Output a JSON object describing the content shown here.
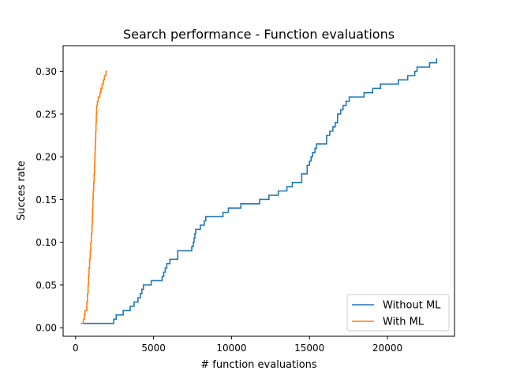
{
  "chart_data": {
    "type": "line",
    "title": "Search performance - Function evaluations",
    "xlabel": "# function evaluations",
    "ylabel": "Succes rate",
    "xlim": [
      -800,
      24300
    ],
    "ylim": [
      -0.01,
      0.33
    ],
    "x_ticks": [
      0,
      5000,
      10000,
      15000,
      20000
    ],
    "x_tick_labels": [
      "0",
      "5000",
      "10000",
      "15000",
      "20000"
    ],
    "y_ticks": [
      0.0,
      0.05,
      0.1,
      0.15,
      0.2,
      0.25,
      0.3
    ],
    "y_tick_labels": [
      "0.00",
      "0.05",
      "0.10",
      "0.15",
      "0.20",
      "0.25",
      "0.30"
    ],
    "grid": false,
    "legend_position": "bottom-right",
    "series": [
      {
        "name": "Without ML",
        "color": "#1f77b4",
        "step": true,
        "points": [
          [
            400,
            0.005
          ],
          [
            2450,
            0.005
          ],
          [
            2450,
            0.01
          ],
          [
            2600,
            0.01
          ],
          [
            2600,
            0.015
          ],
          [
            3050,
            0.015
          ],
          [
            3050,
            0.02
          ],
          [
            3500,
            0.02
          ],
          [
            3500,
            0.025
          ],
          [
            3750,
            0.025
          ],
          [
            3750,
            0.03
          ],
          [
            4000,
            0.03
          ],
          [
            4000,
            0.035
          ],
          [
            4150,
            0.035
          ],
          [
            4150,
            0.04
          ],
          [
            4250,
            0.04
          ],
          [
            4250,
            0.045
          ],
          [
            4350,
            0.045
          ],
          [
            4350,
            0.05
          ],
          [
            4850,
            0.05
          ],
          [
            4850,
            0.055
          ],
          [
            5550,
            0.055
          ],
          [
            5550,
            0.06
          ],
          [
            5650,
            0.06
          ],
          [
            5650,
            0.065
          ],
          [
            5750,
            0.065
          ],
          [
            5750,
            0.07
          ],
          [
            5850,
            0.07
          ],
          [
            5850,
            0.075
          ],
          [
            6050,
            0.075
          ],
          [
            6050,
            0.08
          ],
          [
            6550,
            0.08
          ],
          [
            6550,
            0.09
          ],
          [
            7450,
            0.09
          ],
          [
            7450,
            0.095
          ],
          [
            7550,
            0.095
          ],
          [
            7550,
            0.1
          ],
          [
            7600,
            0.1
          ],
          [
            7600,
            0.105
          ],
          [
            7650,
            0.105
          ],
          [
            7650,
            0.11
          ],
          [
            7700,
            0.11
          ],
          [
            7700,
            0.115
          ],
          [
            8000,
            0.115
          ],
          [
            8000,
            0.12
          ],
          [
            8250,
            0.12
          ],
          [
            8250,
            0.125
          ],
          [
            8350,
            0.125
          ],
          [
            8350,
            0.13
          ],
          [
            9450,
            0.13
          ],
          [
            9450,
            0.135
          ],
          [
            9800,
            0.135
          ],
          [
            9800,
            0.14
          ],
          [
            10600,
            0.14
          ],
          [
            10600,
            0.145
          ],
          [
            11800,
            0.145
          ],
          [
            11800,
            0.15
          ],
          [
            12400,
            0.15
          ],
          [
            12400,
            0.155
          ],
          [
            13000,
            0.155
          ],
          [
            13000,
            0.16
          ],
          [
            13550,
            0.16
          ],
          [
            13550,
            0.165
          ],
          [
            13900,
            0.165
          ],
          [
            13900,
            0.17
          ],
          [
            14500,
            0.17
          ],
          [
            14500,
            0.18
          ],
          [
            14850,
            0.18
          ],
          [
            14850,
            0.19
          ],
          [
            15000,
            0.19
          ],
          [
            15000,
            0.195
          ],
          [
            15100,
            0.195
          ],
          [
            15100,
            0.2
          ],
          [
            15200,
            0.2
          ],
          [
            15200,
            0.205
          ],
          [
            15350,
            0.205
          ],
          [
            15350,
            0.21
          ],
          [
            15450,
            0.21
          ],
          [
            15450,
            0.215
          ],
          [
            16100,
            0.215
          ],
          [
            16100,
            0.225
          ],
          [
            16300,
            0.225
          ],
          [
            16300,
            0.23
          ],
          [
            16500,
            0.23
          ],
          [
            16500,
            0.235
          ],
          [
            16650,
            0.235
          ],
          [
            16650,
            0.24
          ],
          [
            16800,
            0.24
          ],
          [
            16800,
            0.25
          ],
          [
            17000,
            0.25
          ],
          [
            17000,
            0.255
          ],
          [
            17150,
            0.255
          ],
          [
            17150,
            0.26
          ],
          [
            17350,
            0.26
          ],
          [
            17350,
            0.265
          ],
          [
            17550,
            0.265
          ],
          [
            17550,
            0.27
          ],
          [
            18500,
            0.27
          ],
          [
            18500,
            0.275
          ],
          [
            19050,
            0.275
          ],
          [
            19050,
            0.28
          ],
          [
            19550,
            0.28
          ],
          [
            19550,
            0.285
          ],
          [
            20700,
            0.285
          ],
          [
            20700,
            0.29
          ],
          [
            21300,
            0.29
          ],
          [
            21300,
            0.295
          ],
          [
            21750,
            0.295
          ],
          [
            21750,
            0.3
          ],
          [
            21900,
            0.3
          ],
          [
            21900,
            0.305
          ],
          [
            22700,
            0.305
          ],
          [
            22700,
            0.31
          ],
          [
            23150,
            0.31
          ],
          [
            23150,
            0.315
          ]
        ]
      },
      {
        "name": "With ML",
        "color": "#ff7f0e",
        "step": true,
        "points": [
          [
            350,
            0.005
          ],
          [
            500,
            0.005
          ],
          [
            500,
            0.01
          ],
          [
            560,
            0.01
          ],
          [
            560,
            0.015
          ],
          [
            600,
            0.015
          ],
          [
            600,
            0.02
          ],
          [
            720,
            0.02
          ],
          [
            720,
            0.03
          ],
          [
            760,
            0.03
          ],
          [
            760,
            0.04
          ],
          [
            800,
            0.04
          ],
          [
            800,
            0.05
          ],
          [
            830,
            0.05
          ],
          [
            830,
            0.06
          ],
          [
            860,
            0.06
          ],
          [
            860,
            0.07
          ],
          [
            900,
            0.07
          ],
          [
            900,
            0.08
          ],
          [
            940,
            0.08
          ],
          [
            940,
            0.09
          ],
          [
            970,
            0.09
          ],
          [
            970,
            0.1
          ],
          [
            1010,
            0.1
          ],
          [
            1010,
            0.11
          ],
          [
            1050,
            0.11
          ],
          [
            1050,
            0.12
          ],
          [
            1070,
            0.12
          ],
          [
            1070,
            0.13
          ],
          [
            1090,
            0.13
          ],
          [
            1090,
            0.14
          ],
          [
            1110,
            0.14
          ],
          [
            1110,
            0.15
          ],
          [
            1130,
            0.15
          ],
          [
            1130,
            0.16
          ],
          [
            1160,
            0.16
          ],
          [
            1160,
            0.17
          ],
          [
            1190,
            0.17
          ],
          [
            1190,
            0.18
          ],
          [
            1210,
            0.18
          ],
          [
            1210,
            0.19
          ],
          [
            1230,
            0.19
          ],
          [
            1230,
            0.2
          ],
          [
            1250,
            0.2
          ],
          [
            1250,
            0.21
          ],
          [
            1270,
            0.21
          ],
          [
            1270,
            0.22
          ],
          [
            1290,
            0.22
          ],
          [
            1290,
            0.23
          ],
          [
            1310,
            0.23
          ],
          [
            1310,
            0.24
          ],
          [
            1330,
            0.24
          ],
          [
            1330,
            0.25
          ],
          [
            1350,
            0.25
          ],
          [
            1350,
            0.26
          ],
          [
            1400,
            0.26
          ],
          [
            1400,
            0.265
          ],
          [
            1450,
            0.265
          ],
          [
            1450,
            0.27
          ],
          [
            1560,
            0.27
          ],
          [
            1560,
            0.275
          ],
          [
            1620,
            0.275
          ],
          [
            1620,
            0.28
          ],
          [
            1700,
            0.28
          ],
          [
            1700,
            0.285
          ],
          [
            1780,
            0.285
          ],
          [
            1780,
            0.29
          ],
          [
            1850,
            0.29
          ],
          [
            1850,
            0.295
          ],
          [
            1950,
            0.295
          ],
          [
            1950,
            0.3
          ],
          [
            2020,
            0.3
          ]
        ]
      }
    ]
  }
}
